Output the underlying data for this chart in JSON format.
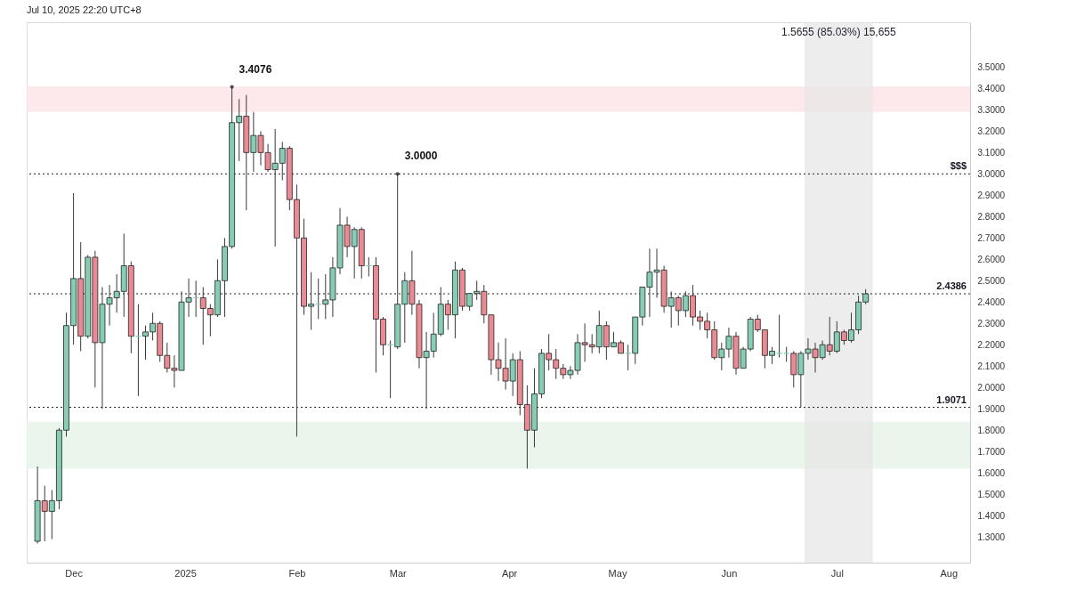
{
  "chart_data": {
    "type": "candlestick",
    "annotations": [
      "Jul 10, 2025 22:20 UTC+8",
      {
        "text": "3.4076",
        "x": "2025-01-14",
        "y": 3.4076
      },
      {
        "text": "3.0000",
        "x": "2025-03-01",
        "y": 3.0
      }
    ],
    "x": [
      "2024-11-21",
      "2024-11-23",
      "2024-11-25",
      "2024-11-27",
      "2024-11-29",
      "2024-12-01",
      "2024-12-03",
      "2024-12-05",
      "2024-12-07",
      "2024-12-09",
      "2024-12-11",
      "2024-12-13",
      "2024-12-15",
      "2024-12-17",
      "2024-12-19",
      "2024-12-21",
      "2024-12-23",
      "2024-12-25",
      "2024-12-27",
      "2024-12-29",
      "2024-12-31",
      "2025-01-02",
      "2025-01-04",
      "2025-01-06",
      "2025-01-08",
      "2025-01-10",
      "2025-01-12",
      "2025-01-14",
      "2025-01-16",
      "2025-01-18",
      "2025-01-20",
      "2025-01-22",
      "2025-01-24",
      "2025-01-26",
      "2025-01-28",
      "2025-01-30",
      "2025-02-01",
      "2025-02-03",
      "2025-02-05",
      "2025-02-07",
      "2025-02-09",
      "2025-02-11",
      "2025-02-13",
      "2025-02-15",
      "2025-02-17",
      "2025-02-19",
      "2025-02-21",
      "2025-02-23",
      "2025-02-25",
      "2025-02-27",
      "2025-03-01",
      "2025-03-03",
      "2025-03-05",
      "2025-03-07",
      "2025-03-09",
      "2025-03-11",
      "2025-03-13",
      "2025-03-15",
      "2025-03-17",
      "2025-03-19",
      "2025-03-21",
      "2025-03-23",
      "2025-03-25",
      "2025-03-27",
      "2025-03-29",
      "2025-03-31",
      "2025-04-02",
      "2025-04-04",
      "2025-04-06",
      "2025-04-08",
      "2025-04-10",
      "2025-04-12",
      "2025-04-14",
      "2025-04-16",
      "2025-04-18",
      "2025-04-20",
      "2025-04-22",
      "2025-04-24",
      "2025-04-26",
      "2025-04-28",
      "2025-04-30",
      "2025-05-02",
      "2025-05-04",
      "2025-05-06",
      "2025-05-08",
      "2025-05-10",
      "2025-05-12",
      "2025-05-14",
      "2025-05-16",
      "2025-05-18",
      "2025-05-20",
      "2025-05-22",
      "2025-05-24",
      "2025-05-26",
      "2025-05-28",
      "2025-05-30",
      "2025-06-01",
      "2025-06-03",
      "2025-06-05",
      "2025-06-07",
      "2025-06-09",
      "2025-06-11",
      "2025-06-13",
      "2025-06-15",
      "2025-06-17",
      "2025-06-19",
      "2025-06-21",
      "2025-06-23",
      "2025-06-25",
      "2025-06-27",
      "2025-06-29",
      "2025-07-01",
      "2025-07-03",
      "2025-07-05",
      "2025-07-07",
      "2025-07-09"
    ],
    "ohlc": [
      [
        1.28,
        1.63,
        1.27,
        1.47
      ],
      [
        1.47,
        1.54,
        1.28,
        1.42
      ],
      [
        1.42,
        1.52,
        1.29,
        1.47
      ],
      [
        1.47,
        1.81,
        1.43,
        1.8
      ],
      [
        1.8,
        2.35,
        1.77,
        2.29
      ],
      [
        2.29,
        2.91,
        2.2,
        2.51
      ],
      [
        2.51,
        2.68,
        2.17,
        2.24
      ],
      [
        2.24,
        2.62,
        2.23,
        2.61
      ],
      [
        2.61,
        2.64,
        2.0,
        2.21
      ],
      [
        2.21,
        2.47,
        1.9,
        2.39
      ],
      [
        2.39,
        2.48,
        2.29,
        2.42
      ],
      [
        2.42,
        2.53,
        2.35,
        2.45
      ],
      [
        2.45,
        2.72,
        2.33,
        2.57
      ],
      [
        2.57,
        2.59,
        2.16,
        2.24
      ],
      [
        2.24,
        2.39,
        1.96,
        2.24
      ],
      [
        2.24,
        2.29,
        2.13,
        2.26
      ],
      [
        2.26,
        2.35,
        2.22,
        2.3
      ],
      [
        2.3,
        2.31,
        2.12,
        2.15
      ],
      [
        2.15,
        2.21,
        2.07,
        2.09
      ],
      [
        2.09,
        2.15,
        2.0,
        2.08
      ],
      [
        2.08,
        2.45,
        2.08,
        2.4
      ],
      [
        2.4,
        2.51,
        2.33,
        2.42
      ],
      [
        2.42,
        2.5,
        2.33,
        2.42
      ],
      [
        2.42,
        2.47,
        2.2,
        2.37
      ],
      [
        2.37,
        2.39,
        2.24,
        2.34
      ],
      [
        2.34,
        2.6,
        2.33,
        2.5
      ],
      [
        2.5,
        2.7,
        2.33,
        2.66
      ],
      [
        2.66,
        3.4076,
        2.65,
        3.24
      ],
      [
        3.24,
        3.35,
        3.06,
        3.27
      ],
      [
        3.27,
        3.37,
        2.83,
        3.1
      ],
      [
        3.1,
        3.29,
        3.01,
        3.18
      ],
      [
        3.18,
        3.2,
        3.04,
        3.1
      ],
      [
        3.1,
        3.14,
        3.01,
        3.02
      ],
      [
        3.02,
        3.21,
        2.66,
        3.05
      ],
      [
        3.05,
        3.15,
        2.97,
        3.12
      ],
      [
        3.12,
        3.13,
        2.83,
        2.88
      ],
      [
        2.88,
        2.95,
        1.77,
        2.7
      ],
      [
        2.7,
        2.79,
        2.34,
        2.38
      ],
      [
        2.38,
        2.54,
        2.27,
        2.39
      ],
      [
        2.39,
        2.51,
        2.32,
        2.39
      ],
      [
        2.39,
        2.53,
        2.32,
        2.41
      ],
      [
        2.41,
        2.61,
        2.33,
        2.56
      ],
      [
        2.56,
        2.84,
        2.53,
        2.76
      ],
      [
        2.76,
        2.8,
        2.61,
        2.66
      ],
      [
        2.66,
        2.75,
        2.51,
        2.74
      ],
      [
        2.74,
        2.75,
        2.51,
        2.57
      ],
      [
        2.57,
        2.61,
        2.52,
        2.57
      ],
      [
        2.57,
        2.61,
        2.07,
        2.32
      ],
      [
        2.32,
        2.33,
        2.15,
        2.2
      ],
      [
        2.2,
        2.22,
        1.95,
        2.2
      ],
      [
        2.19,
        3.0,
        2.18,
        2.39
      ],
      [
        2.39,
        2.54,
        2.21,
        2.5
      ],
      [
        2.5,
        2.64,
        2.34,
        2.39
      ],
      [
        2.39,
        2.41,
        2.09,
        2.14
      ],
      [
        2.14,
        2.26,
        1.9,
        2.17
      ],
      [
        2.17,
        2.35,
        2.14,
        2.25
      ],
      [
        2.25,
        2.47,
        2.24,
        2.39
      ],
      [
        2.39,
        2.41,
        2.27,
        2.34
      ],
      [
        2.34,
        2.59,
        2.23,
        2.55
      ],
      [
        2.55,
        2.56,
        2.36,
        2.38
      ],
      [
        2.38,
        2.44,
        2.36,
        2.44
      ],
      [
        2.44,
        2.5,
        2.41,
        2.45
      ],
      [
        2.45,
        2.48,
        2.3,
        2.34
      ],
      [
        2.34,
        2.34,
        2.06,
        2.13
      ],
      [
        2.13,
        2.21,
        2.03,
        2.09
      ],
      [
        2.09,
        2.23,
        1.99,
        2.03
      ],
      [
        2.03,
        2.16,
        1.96,
        2.13
      ],
      [
        2.13,
        2.17,
        1.87,
        1.92
      ],
      [
        1.92,
        2.01,
        1.62,
        1.8
      ],
      [
        1.8,
        2.09,
        1.72,
        1.97
      ],
      [
        1.97,
        2.18,
        1.95,
        2.16
      ],
      [
        2.16,
        2.25,
        2.08,
        2.13
      ],
      [
        2.13,
        2.18,
        2.04,
        2.09
      ],
      [
        2.09,
        2.11,
        2.04,
        2.06
      ],
      [
        2.06,
        2.1,
        2.04,
        2.08
      ],
      [
        2.08,
        2.25,
        2.06,
        2.21
      ],
      [
        2.21,
        2.3,
        2.12,
        2.2
      ],
      [
        2.2,
        2.25,
        2.16,
        2.19
      ],
      [
        2.19,
        2.36,
        2.16,
        2.29
      ],
      [
        2.29,
        2.31,
        2.13,
        2.19
      ],
      [
        2.19,
        2.26,
        2.19,
        2.21
      ],
      [
        2.21,
        2.22,
        2.16,
        2.16
      ],
      [
        2.16,
        2.2,
        2.08,
        2.16
      ],
      [
        2.16,
        2.33,
        2.11,
        2.33
      ],
      [
        2.33,
        2.47,
        2.29,
        2.47
      ],
      [
        2.47,
        2.65,
        2.33,
        2.54
      ],
      [
        2.54,
        2.65,
        2.42,
        2.55
      ],
      [
        2.55,
        2.57,
        2.35,
        2.38
      ],
      [
        2.38,
        2.45,
        2.28,
        2.42
      ],
      [
        2.42,
        2.43,
        2.29,
        2.36
      ],
      [
        2.36,
        2.45,
        2.33,
        2.43
      ],
      [
        2.43,
        2.48,
        2.29,
        2.33
      ],
      [
        2.33,
        2.36,
        2.27,
        2.31
      ],
      [
        2.31,
        2.35,
        2.23,
        2.27
      ],
      [
        2.27,
        2.31,
        2.13,
        2.14
      ],
      [
        2.14,
        2.21,
        2.08,
        2.18
      ],
      [
        2.18,
        2.28,
        2.14,
        2.24
      ],
      [
        2.24,
        2.26,
        2.06,
        2.09
      ],
      [
        2.09,
        2.19,
        2.09,
        2.18
      ],
      [
        2.18,
        2.33,
        2.17,
        2.32
      ],
      [
        2.32,
        2.34,
        2.26,
        2.27
      ],
      [
        2.27,
        2.27,
        2.09,
        2.15
      ],
      [
        2.15,
        2.19,
        2.11,
        2.17
      ],
      [
        2.16,
        2.34,
        2.14,
        2.16
      ],
      [
        2.16,
        2.19,
        2.12,
        2.16
      ],
      [
        2.16,
        2.17,
        2.0,
        2.06
      ],
      [
        2.06,
        2.17,
        1.9071,
        2.16
      ],
      [
        2.16,
        2.23,
        2.13,
        2.18
      ],
      [
        2.18,
        2.21,
        2.07,
        2.14
      ],
      [
        2.14,
        2.22,
        2.13,
        2.2
      ],
      [
        2.2,
        2.33,
        2.15,
        2.17
      ],
      [
        2.17,
        2.31,
        2.16,
        2.26
      ],
      [
        2.26,
        2.27,
        2.2,
        2.22
      ],
      [
        2.22,
        2.35,
        2.21,
        2.27
      ],
      [
        2.27,
        2.43,
        2.25,
        2.4
      ],
      [
        2.4,
        2.46,
        2.39,
        2.4386
      ]
    ],
    "colors": [
      "#86cdb4",
      "#ea8a93",
      "#86cdb4",
      "#86cdb4",
      "#86cdb4",
      "#86cdb4",
      "#ea8a93",
      "#86cdb4",
      "#ea8a93",
      "#86cdb4",
      "#86cdb4",
      "#86cdb4",
      "#86cdb4",
      "#ea8a93",
      "#86cdb4",
      "#86cdb4",
      "#86cdb4",
      "#ea8a93",
      "#ea8a93",
      "#ea8a93",
      "#86cdb4",
      "#86cdb4",
      "#86cdb4",
      "#ea8a93",
      "#ea8a93",
      "#86cdb4",
      "#86cdb4",
      "#86cdb4",
      "#86cdb4",
      "#ea8a93",
      "#86cdb4",
      "#ea8a93",
      "#ea8a93",
      "#86cdb4",
      "#86cdb4",
      "#ea8a93",
      "#ea8a93",
      "#ea8a93",
      "#86cdb4",
      "#86cdb4",
      "#86cdb4",
      "#86cdb4",
      "#86cdb4",
      "#ea8a93",
      "#86cdb4",
      "#ea8a93",
      "#86cdb4",
      "#ea8a93",
      "#ea8a93",
      "#86cdb4",
      "#86cdb4",
      "#86cdb4",
      "#ea8a93",
      "#ea8a93",
      "#86cdb4",
      "#86cdb4",
      "#86cdb4",
      "#ea8a93",
      "#86cdb4",
      "#ea8a93",
      "#86cdb4",
      "#86cdb4",
      "#ea8a93",
      "#ea8a93",
      "#ea8a93",
      "#ea8a93",
      "#86cdb4",
      "#ea8a93",
      "#ea8a93",
      "#86cdb4",
      "#86cdb4",
      "#ea8a93",
      "#ea8a93",
      "#ea8a93",
      "#86cdb4",
      "#86cdb4",
      "#ea8a93",
      "#ea8a93",
      "#86cdb4",
      "#ea8a93",
      "#86cdb4",
      "#ea8a93",
      "#86cdb4",
      "#86cdb4",
      "#86cdb4",
      "#86cdb4",
      "#86cdb4",
      "#ea8a93",
      "#86cdb4",
      "#ea8a93",
      "#86cdb4",
      "#ea8a93",
      "#ea8a93",
      "#ea8a93",
      "#ea8a93",
      "#86cdb4",
      "#86cdb4",
      "#ea8a93",
      "#86cdb4",
      "#86cdb4",
      "#ea8a93",
      "#ea8a93",
      "#86cdb4",
      "#86cdb4",
      "#86cdb4",
      "#ea8a93",
      "#86cdb4",
      "#86cdb4",
      "#ea8a93",
      "#86cdb4",
      "#ea8a93",
      "#86cdb4",
      "#ea8a93",
      "#86cdb4",
      "#86cdb4",
      "#86cdb4"
    ],
    "xlim": [
      "2024-11-18",
      "2025-08-07"
    ],
    "xticks": [
      {
        "value": "2024-12-01",
        "label": "Dec"
      },
      {
        "value": "2025-01-01",
        "label": "2025"
      },
      {
        "value": "2025-02-01",
        "label": "Feb"
      },
      {
        "value": "2025-03-01",
        "label": "Mar"
      },
      {
        "value": "2025-04-01",
        "label": "Apr"
      },
      {
        "value": "2025-05-01",
        "label": "May"
      },
      {
        "value": "2025-06-01",
        "label": "Jun"
      },
      {
        "value": "2025-07-01",
        "label": "Jul"
      },
      {
        "value": "2025-08-01",
        "label": "Aug"
      }
    ],
    "ylim": [
      1.18,
      3.71
    ],
    "yticks": [
      {
        "value": 1.3,
        "label": "1.3000"
      },
      {
        "value": 1.4,
        "label": "1.4000"
      },
      {
        "value": 1.5,
        "label": "1.5000"
      },
      {
        "value": 1.6,
        "label": "1.6000"
      },
      {
        "value": 1.7,
        "label": "1.7000"
      },
      {
        "value": 1.8,
        "label": "1.8000"
      },
      {
        "value": 1.9,
        "label": "1.9000"
      },
      {
        "value": 2.0,
        "label": "2.0000"
      },
      {
        "value": 2.1,
        "label": "2.1000"
      },
      {
        "value": 2.2,
        "label": "2.2000"
      },
      {
        "value": 2.3,
        "label": "2.3000"
      },
      {
        "value": 2.4,
        "label": "2.4000"
      },
      {
        "value": 2.5,
        "label": "2.5000"
      },
      {
        "value": 2.6,
        "label": "2.6000"
      },
      {
        "value": 2.7,
        "label": "2.7000"
      },
      {
        "value": 2.8,
        "label": "2.8000"
      },
      {
        "value": 2.9,
        "label": "2.9000"
      },
      {
        "value": 3.0,
        "label": "3.0000"
      },
      {
        "value": 3.1,
        "label": "3.1000"
      },
      {
        "value": 3.2,
        "label": "3.2000"
      },
      {
        "value": 3.3,
        "label": "3.3000"
      },
      {
        "value": 3.4,
        "label": "3.4000"
      },
      {
        "value": 3.5,
        "label": "3.5000"
      }
    ],
    "ref_lines": [
      {
        "axis": "y",
        "value": 3.0,
        "label": "$$$",
        "line_style": "dotted",
        "color": "#222222"
      },
      {
        "axis": "y",
        "value": 2.4386,
        "label": "2.4386",
        "line_style": "dotted",
        "color": "#222222"
      },
      {
        "axis": "y",
        "value": 1.9071,
        "label": "1.9071",
        "line_style": "dotted",
        "color": "#222222"
      }
    ],
    "bands": [
      {
        "axis": "y",
        "from": 3.29,
        "to": 3.41,
        "label": null,
        "color": "#fde3e6"
      },
      {
        "axis": "y",
        "from": 1.62,
        "to": 1.84,
        "label": null,
        "color": "#e5f4e6"
      },
      {
        "axis": "x",
        "from": "2025-06-22",
        "to": "2025-07-11",
        "label": "1.5655 (85.03%) 15,655",
        "color": "#e6e6e6"
      }
    ]
  }
}
